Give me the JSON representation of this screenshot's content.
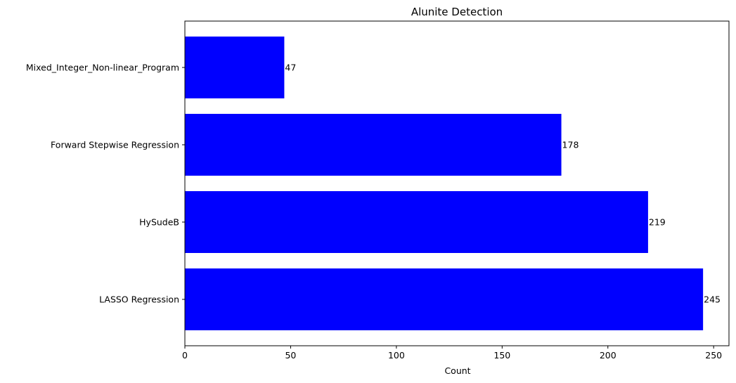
{
  "chart_data": {
    "type": "bar",
    "orientation": "horizontal",
    "title": "Alunite Detection",
    "xlabel": "Count",
    "ylabel": "",
    "categories": [
      "LASSO Regression",
      "HySudeB",
      "Forward Stepwise Regression",
      "Mixed_Integer_Non-linear_Program"
    ],
    "values": [
      245,
      219,
      178,
      47
    ],
    "xlim": [
      0,
      257.25
    ],
    "xticks": [
      0,
      50,
      100,
      150,
      200,
      250
    ],
    "bar_color": "#0000ff",
    "grid": false,
    "legend": "none"
  }
}
